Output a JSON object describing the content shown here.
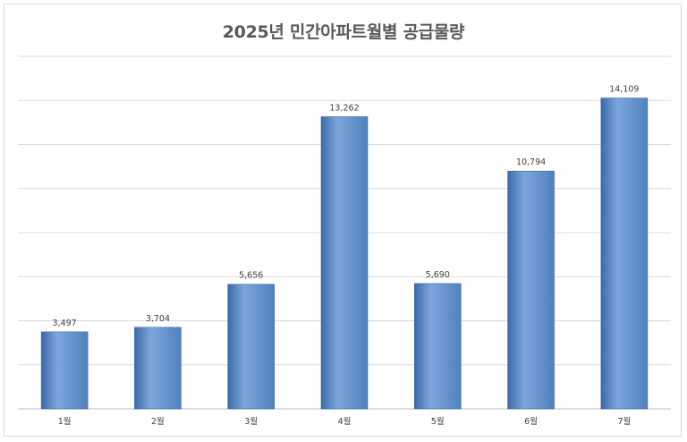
{
  "chart_data": {
    "type": "bar",
    "title": "2025년 민간아파트월별 공급물량",
    "categories": [
      "1월",
      "2월",
      "3월",
      "4월",
      "5월",
      "6월",
      "7월"
    ],
    "values": [
      3497,
      3704,
      5656,
      13262,
      5690,
      10794,
      14109
    ],
    "value_labels": [
      "3,497",
      "3,704",
      "5,656",
      "13,262",
      "5,690",
      "10,794",
      "14,109"
    ],
    "ylim": [
      0,
      16000
    ],
    "grid": true,
    "legend": "none",
    "xlabel": "",
    "ylabel": "",
    "colors": {
      "bar": "#4f81bd",
      "bar_light": "#7ea6dc",
      "bar_dark": "#3a6aa8",
      "grid": "#d9d9d9",
      "text": "#404040"
    }
  }
}
